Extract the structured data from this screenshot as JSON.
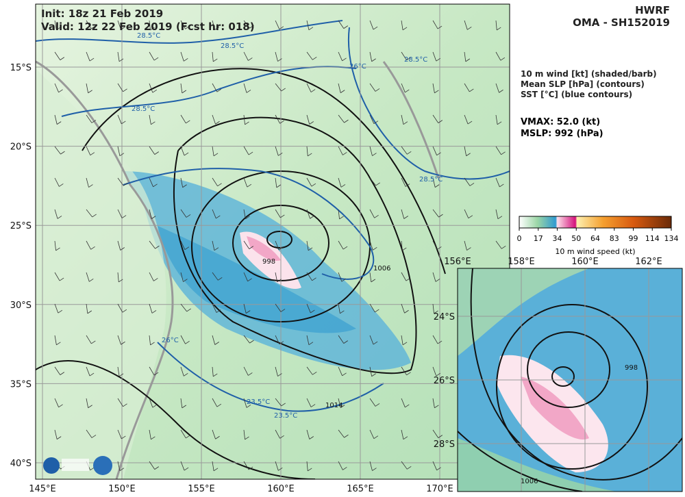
{
  "header": {
    "init": "Init:   18z 21 Feb 2019",
    "valid": "Valid: 12z 22 Feb 2019 (Fcst hr: 018)",
    "model": "HWRF",
    "storm": "OMA - SH152019"
  },
  "legend": {
    "lines": [
      "10 m wind [kt] (shaded/barb)",
      "Mean SLP [hPa] (contours)",
      "SST [°C] (blue contours)"
    ],
    "vmax": "VMAX:  52.0 (kt)",
    "mslp": "MSLP:  992 (hPa)"
  },
  "colorbar": {
    "ticks": [
      "0",
      "17",
      "34",
      "50",
      "64",
      "83",
      "99",
      "114",
      "134"
    ],
    "label": "10 m wind speed (kt)"
  },
  "map": {
    "lat_labels": [
      "15°S",
      "20°S",
      "25°S",
      "30°S",
      "35°S",
      "40°S"
    ],
    "lon_labels": [
      "145°E",
      "150°E",
      "155°E",
      "160°E",
      "165°E",
      "170°E"
    ],
    "contour_labels": [
      "28.5°C",
      "28.5°C",
      "28.5°C",
      "28.5°C",
      "26°C",
      "28.5°C",
      "1006",
      "998",
      "26°C",
      "23.5°C",
      "23.5°C",
      "1014"
    ]
  },
  "inset": {
    "lon_labels": [
      "156°E",
      "158°E",
      "160°E",
      "162°E"
    ],
    "lat_labels": [
      "24°S",
      "26°S",
      "28°S"
    ],
    "contour_labels": [
      "998",
      "1006"
    ]
  }
}
